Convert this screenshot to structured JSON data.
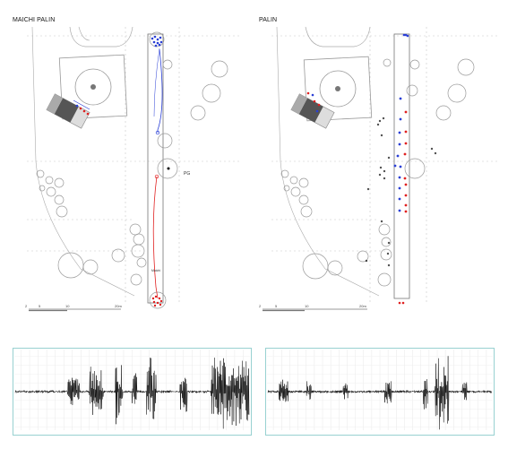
{
  "left_plan": {
    "title": "MAICHI PALIN",
    "pg_label": "PG",
    "note_label": "Maichi",
    "scale": {
      "ticks": [
        "2",
        "5",
        "10",
        "20m"
      ]
    }
  },
  "right_plan": {
    "title": "PALIN",
    "scale": {
      "ticks": [
        "2",
        "5",
        "10",
        "20m"
      ]
    }
  },
  "colors": {
    "blue": "#2a3fd6",
    "red": "#e02020",
    "black": "#111111",
    "gray": "#9a9a9a",
    "grid": "#c8c8c8",
    "wave_axis": "#8fd6d6"
  },
  "waveforms": {
    "left": {
      "bursts": [
        [
          0.23,
          0.28,
          0.45
        ],
        [
          0.32,
          0.38,
          0.7
        ],
        [
          0.43,
          0.46,
          0.95
        ],
        [
          0.5,
          0.52,
          0.6
        ],
        [
          0.56,
          0.6,
          0.9
        ],
        [
          0.7,
          0.73,
          0.55
        ],
        [
          0.83,
          1.0,
          1.0
        ]
      ]
    },
    "right": {
      "bursts": [
        [
          0.06,
          0.1,
          0.45
        ],
        [
          0.18,
          0.2,
          0.35
        ],
        [
          0.34,
          0.36,
          0.25
        ],
        [
          0.52,
          0.55,
          0.35
        ],
        [
          0.69,
          0.71,
          0.5
        ],
        [
          0.74,
          0.8,
          1.0
        ],
        [
          0.86,
          0.88,
          0.35
        ]
      ]
    }
  }
}
